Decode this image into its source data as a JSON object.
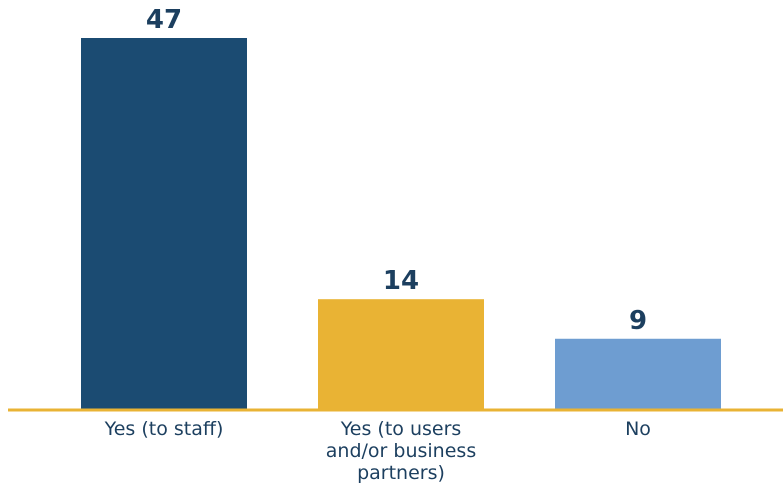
{
  "chart_data": {
    "type": "bar",
    "title": "",
    "xlabel": "",
    "ylabel": "",
    "ylim": [
      0,
      47
    ],
    "grid": false,
    "legend": "none",
    "categories": [
      [
        "Yes (to staff)"
      ],
      [
        "Yes (to users",
        "and/or business",
        "partners)"
      ],
      [
        "No"
      ]
    ],
    "values": [
      47,
      14,
      9
    ],
    "value_labels": [
      "47",
      "14",
      "9"
    ],
    "colors": [
      "#1b4b72",
      "#e9b334",
      "#6e9dd1"
    ],
    "axis_color": "#e9b334",
    "text_color": "#1c3f5f"
  }
}
